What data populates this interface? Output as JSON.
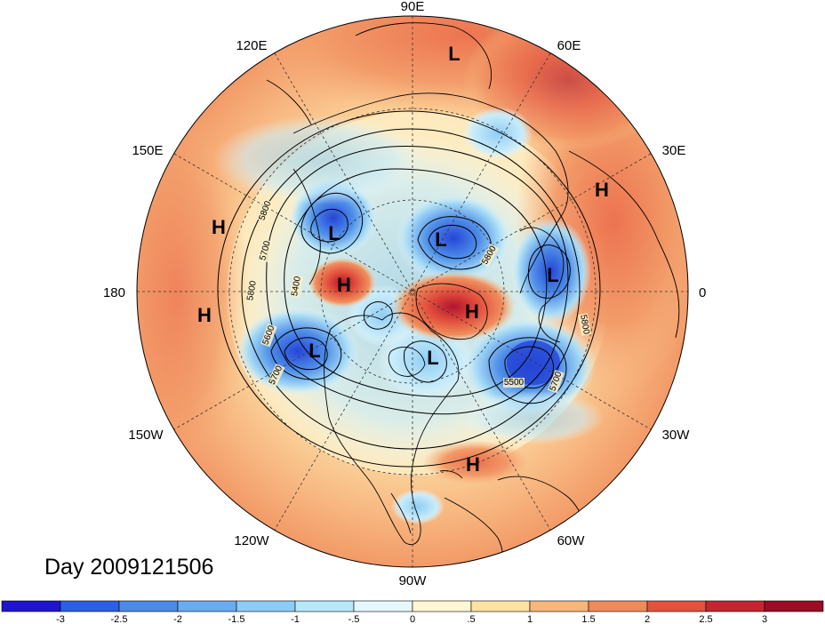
{
  "map": {
    "projection": "polar-stereographic-north",
    "longitude_labels": [
      {
        "id": "lon-90e",
        "text": "90E"
      },
      {
        "id": "lon-60e",
        "text": "60E"
      },
      {
        "id": "lon-30e",
        "text": "30E"
      },
      {
        "id": "lon-0",
        "text": "0"
      },
      {
        "id": "lon-30w",
        "text": "30W"
      },
      {
        "id": "lon-60w",
        "text": "60W"
      },
      {
        "id": "lon-90w",
        "text": "90W"
      },
      {
        "id": "lon-120w",
        "text": "120W"
      },
      {
        "id": "lon-150w",
        "text": "150W"
      },
      {
        "id": "lon-180",
        "text": "180"
      },
      {
        "id": "lon-150e",
        "text": "150E"
      },
      {
        "id": "lon-120e",
        "text": "120E"
      }
    ],
    "pressure_systems": [
      {
        "id": "sys-1",
        "type": "L"
      },
      {
        "id": "sys-2",
        "type": "H"
      },
      {
        "id": "sys-3",
        "type": "H"
      },
      {
        "id": "sys-4",
        "type": "L"
      },
      {
        "id": "sys-5",
        "type": "L"
      },
      {
        "id": "sys-6",
        "type": "L"
      },
      {
        "id": "sys-7",
        "type": "H"
      },
      {
        "id": "sys-8",
        "type": "H"
      },
      {
        "id": "sys-9",
        "type": "H"
      },
      {
        "id": "sys-10",
        "type": "L"
      },
      {
        "id": "sys-11",
        "type": "L"
      },
      {
        "id": "sys-12",
        "type": "H"
      }
    ],
    "contour_labels": [
      "5800",
      "5700",
      "5800",
      "5400",
      "5600",
      "5700",
      "5800",
      "5500",
      "5700",
      "5800"
    ],
    "colors": {
      "deep_blue": "#2545d6",
      "blue": "#4f8ee8",
      "light_blue": "#a8dcf6",
      "pale_blue": "#dff4fb",
      "pale_yellow": "#fdf3c2",
      "light_orange": "#f8c78c",
      "orange": "#f08f5e",
      "red": "#e14d3c",
      "dark_red": "#b0152c"
    }
  },
  "title": "Day 2009121506",
  "colorbar": {
    "labels": [
      "-3",
      "-2.5",
      "-2",
      "-1.5",
      "-1",
      "-.5",
      "0",
      ".5",
      "1",
      "1.5",
      "2",
      "2.5",
      "3"
    ],
    "colors": [
      "#1f15d1",
      "#2b5fe6",
      "#4b8ae9",
      "#6aacf0",
      "#8cccf5",
      "#b7e8fa",
      "#e6f8fd",
      "#fff7d3",
      "#fde2a2",
      "#f7b77a",
      "#f08a5b",
      "#e6503e",
      "#c62431",
      "#9d0b25"
    ]
  }
}
